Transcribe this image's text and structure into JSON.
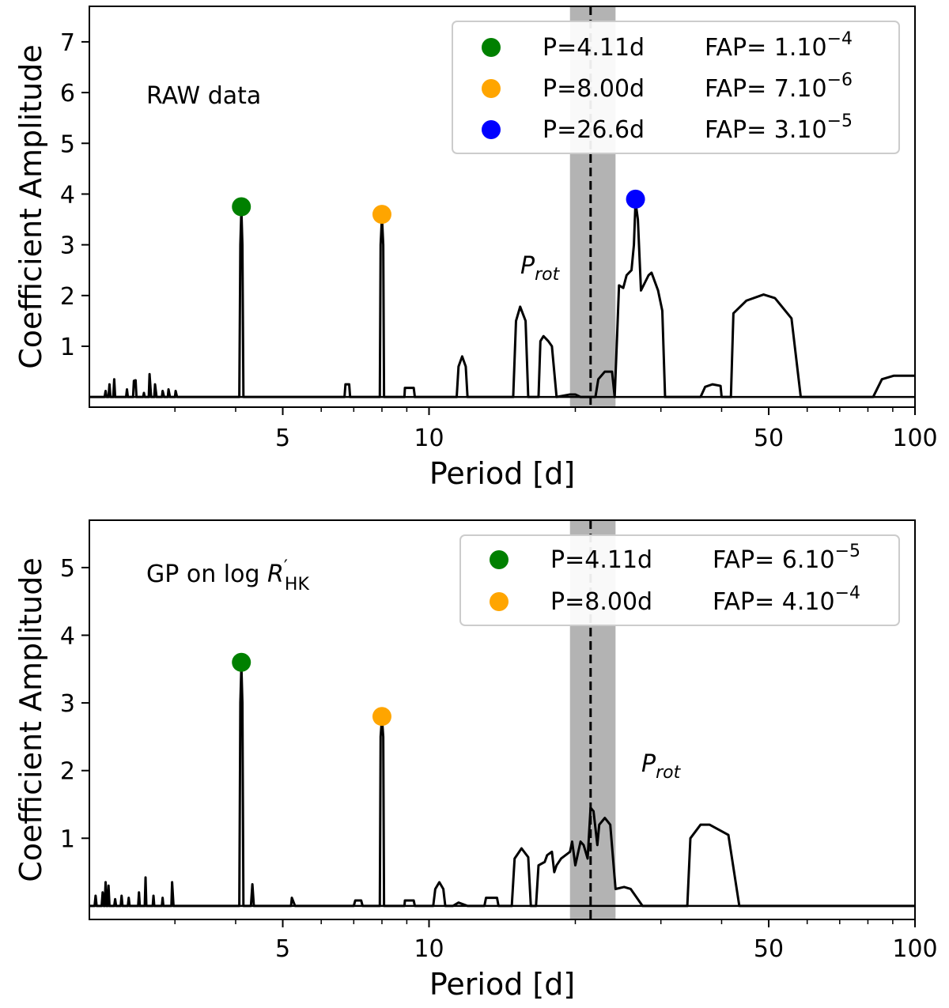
{
  "chart_data": [
    {
      "type": "line",
      "title": "",
      "annotation": "RAW data",
      "xlabel": "Period [d]",
      "ylabel": "Coefficient Amplitude",
      "xscale": "log",
      "xlim": [
        2,
        100
      ],
      "ylim": [
        -0.2,
        7.7
      ],
      "xticks": [
        {
          "value": 5,
          "label": "5"
        },
        {
          "value": 10,
          "label": "10"
        },
        {
          "value": 50,
          "label": "50"
        },
        {
          "value": 100,
          "label": "100"
        }
      ],
      "yticks": [
        {
          "value": 1,
          "label": "1"
        },
        {
          "value": 2,
          "label": "2"
        },
        {
          "value": 3,
          "label": "3"
        },
        {
          "value": 4,
          "label": "4"
        },
        {
          "value": 5,
          "label": "5"
        },
        {
          "value": 6,
          "label": "6"
        },
        {
          "value": 7,
          "label": "7"
        }
      ],
      "rotation_period": {
        "label": "P",
        "subscript": "rot",
        "value": 21.5,
        "band": [
          19.5,
          24.2
        ]
      },
      "series": [
        {
          "name": "periodogram",
          "color": "#000000",
          "points": [
            [
              2.0,
              0
            ],
            [
              2.15,
              0
            ],
            [
              2.16,
              0.12
            ],
            [
              2.17,
              0
            ],
            [
              2.19,
              0
            ],
            [
              2.2,
              0.25
            ],
            [
              2.21,
              0
            ],
            [
              2.24,
              0
            ],
            [
              2.25,
              0.35
            ],
            [
              2.26,
              0
            ],
            [
              2.38,
              0
            ],
            [
              2.39,
              0.15
            ],
            [
              2.4,
              0
            ],
            [
              2.46,
              0
            ],
            [
              2.47,
              0.32
            ],
            [
              2.49,
              0.33
            ],
            [
              2.5,
              0
            ],
            [
              2.58,
              0
            ],
            [
              2.59,
              0.08
            ],
            [
              2.6,
              0
            ],
            [
              2.65,
              0
            ],
            [
              2.66,
              0.45
            ],
            [
              2.68,
              0
            ],
            [
              2.72,
              0
            ],
            [
              2.73,
              0.25
            ],
            [
              2.75,
              0
            ],
            [
              2.82,
              0
            ],
            [
              2.83,
              0.12
            ],
            [
              2.85,
              0
            ],
            [
              2.9,
              0
            ],
            [
              2.91,
              0.15
            ],
            [
              2.93,
              0
            ],
            [
              3.0,
              0
            ],
            [
              3.01,
              0.12
            ],
            [
              3.03,
              0
            ],
            [
              4.07,
              0
            ],
            [
              4.09,
              3.0
            ],
            [
              4.11,
              3.7
            ],
            [
              4.13,
              3.0
            ],
            [
              4.15,
              0
            ],
            [
              6.7,
              0
            ],
            [
              6.73,
              0.25
            ],
            [
              6.85,
              0.25
            ],
            [
              6.88,
              0
            ],
            [
              7.92,
              0
            ],
            [
              7.95,
              3.0
            ],
            [
              8.0,
              3.55
            ],
            [
              8.05,
              3.0
            ],
            [
              8.08,
              0
            ],
            [
              8.9,
              0
            ],
            [
              8.92,
              0.18
            ],
            [
              9.3,
              0.18
            ],
            [
              9.35,
              0
            ],
            [
              11.4,
              0
            ],
            [
              11.5,
              0.6
            ],
            [
              11.7,
              0.8
            ],
            [
              11.9,
              0.6
            ],
            [
              12.0,
              0
            ],
            [
              14.9,
              0
            ],
            [
              15.1,
              1.5
            ],
            [
              15.4,
              1.78
            ],
            [
              15.8,
              1.5
            ],
            [
              16.0,
              0
            ],
            [
              16.8,
              0
            ],
            [
              16.95,
              1.1
            ],
            [
              17.2,
              1.2
            ],
            [
              17.6,
              1.1
            ],
            [
              17.9,
              1.0
            ],
            [
              18.3,
              0
            ],
            [
              19.5,
              0.05
            ],
            [
              20.0,
              0.05
            ],
            [
              20.5,
              0
            ],
            [
              22.0,
              0
            ],
            [
              22.3,
              0.35
            ],
            [
              23.0,
              0.5
            ],
            [
              23.8,
              0.5
            ],
            [
              24.1,
              0
            ],
            [
              24.4,
              1.3
            ],
            [
              24.6,
              2.2
            ],
            [
              25.1,
              2.15
            ],
            [
              25.5,
              2.4
            ],
            [
              26.1,
              2.5
            ],
            [
              26.4,
              3.0
            ],
            [
              26.6,
              3.85
            ],
            [
              26.9,
              3.5
            ],
            [
              27.3,
              2.1
            ],
            [
              28.3,
              2.4
            ],
            [
              28.7,
              2.45
            ],
            [
              29.6,
              2.1
            ],
            [
              30.2,
              1.7
            ],
            [
              30.6,
              0
            ],
            [
              36.2,
              0
            ],
            [
              37.0,
              0.2
            ],
            [
              38.3,
              0.25
            ],
            [
              39.8,
              0.22
            ],
            [
              40.0,
              0
            ],
            [
              41.8,
              0
            ],
            [
              42.3,
              1.65
            ],
            [
              45.0,
              1.9
            ],
            [
              48.8,
              2.02
            ],
            [
              51.5,
              1.95
            ],
            [
              55.7,
              1.55
            ],
            [
              58.2,
              0
            ],
            [
              82.0,
              0
            ],
            [
              85.5,
              0.35
            ],
            [
              90.5,
              0.42
            ],
            [
              100.0,
              0.42
            ]
          ]
        }
      ],
      "markers": [
        {
          "x": 4.11,
          "y": 3.75,
          "color": "#008000"
        },
        {
          "x": 8.0,
          "y": 3.6,
          "color": "#ffa500"
        },
        {
          "x": 26.6,
          "y": 3.9,
          "color": "#0000ff"
        }
      ],
      "legend": {
        "position": "top-right",
        "entries": [
          {
            "color": "#008000",
            "period": "P=4.11d",
            "fap_prefix": "FAP= 1.10",
            "fap_exp": "−4"
          },
          {
            "color": "#ffa500",
            "period": "P=8.00d",
            "fap_prefix": "FAP= 7.10",
            "fap_exp": "−6"
          },
          {
            "color": "#0000ff",
            "period": "P=26.6d",
            "fap_prefix": "FAP= 3.10",
            "fap_exp": "−5"
          }
        ]
      }
    },
    {
      "type": "line",
      "title": "",
      "annotation": "GP on log R'HK",
      "annotation_parts": {
        "prefix": "GP on log ",
        "symbol": "R",
        "prime": "′",
        "subscript": "HK"
      },
      "xlabel": "Period [d]",
      "ylabel": "Coefficient Amplitude",
      "xscale": "log",
      "xlim": [
        2,
        100
      ],
      "ylim": [
        -0.2,
        5.7
      ],
      "xticks": [
        {
          "value": 5,
          "label": "5"
        },
        {
          "value": 10,
          "label": "10"
        },
        {
          "value": 50,
          "label": "50"
        },
        {
          "value": 100,
          "label": "100"
        }
      ],
      "yticks": [
        {
          "value": 1,
          "label": "1"
        },
        {
          "value": 2,
          "label": "2"
        },
        {
          "value": 3,
          "label": "3"
        },
        {
          "value": 4,
          "label": "4"
        },
        {
          "value": 5,
          "label": "5"
        }
      ],
      "rotation_period": {
        "label": "P",
        "subscript": "rot",
        "value": 21.5,
        "band": [
          19.5,
          24.2
        ]
      },
      "series": [
        {
          "name": "periodogram",
          "color": "#000000",
          "points": [
            [
              2.0,
              0
            ],
            [
              2.05,
              0
            ],
            [
              2.06,
              0.15
            ],
            [
              2.07,
              0
            ],
            [
              2.12,
              0
            ],
            [
              2.13,
              0.2
            ],
            [
              2.14,
              0
            ],
            [
              2.15,
              0
            ],
            [
              2.16,
              0.35
            ],
            [
              2.17,
              0
            ],
            [
              2.18,
              0
            ],
            [
              2.19,
              0.3
            ],
            [
              2.2,
              0
            ],
            [
              2.25,
              0
            ],
            [
              2.26,
              0.1
            ],
            [
              2.27,
              0
            ],
            [
              2.32,
              0
            ],
            [
              2.33,
              0.15
            ],
            [
              2.34,
              0
            ],
            [
              2.4,
              0
            ],
            [
              2.41,
              0.12
            ],
            [
              2.42,
              0
            ],
            [
              2.52,
              0
            ],
            [
              2.53,
              0.2
            ],
            [
              2.54,
              0
            ],
            [
              2.6,
              0
            ],
            [
              2.61,
              0.42
            ],
            [
              2.62,
              0
            ],
            [
              2.7,
              0
            ],
            [
              2.71,
              0.15
            ],
            [
              2.72,
              0
            ],
            [
              2.82,
              0
            ],
            [
              2.83,
              0.12
            ],
            [
              2.84,
              0
            ],
            [
              2.95,
              0
            ],
            [
              2.96,
              0.35
            ],
            [
              2.98,
              0
            ],
            [
              4.07,
              0
            ],
            [
              4.09,
              3.0
            ],
            [
              4.11,
              3.55
            ],
            [
              4.13,
              3.0
            ],
            [
              4.15,
              0
            ],
            [
              4.3,
              0
            ],
            [
              4.33,
              0.32
            ],
            [
              4.36,
              0
            ],
            [
              5.2,
              0
            ],
            [
              5.22,
              0.12
            ],
            [
              5.3,
              0
            ],
            [
              7.0,
              0
            ],
            [
              7.05,
              0.08
            ],
            [
              7.25,
              0.08
            ],
            [
              7.3,
              0
            ],
            [
              7.92,
              0
            ],
            [
              7.95,
              2.5
            ],
            [
              8.0,
              2.78
            ],
            [
              8.05,
              2.5
            ],
            [
              8.08,
              0
            ],
            [
              8.9,
              0
            ],
            [
              8.92,
              0.08
            ],
            [
              9.3,
              0.08
            ],
            [
              9.35,
              0
            ],
            [
              10.2,
              0
            ],
            [
              10.3,
              0.25
            ],
            [
              10.5,
              0.35
            ],
            [
              10.7,
              0.25
            ],
            [
              10.8,
              0
            ],
            [
              11.2,
              0
            ],
            [
              11.5,
              0.05
            ],
            [
              12.0,
              0
            ],
            [
              13.0,
              0
            ],
            [
              13.1,
              0.12
            ],
            [
              13.8,
              0.12
            ],
            [
              13.9,
              0
            ],
            [
              14.8,
              0
            ],
            [
              15.0,
              0.7
            ],
            [
              15.5,
              0.85
            ],
            [
              16.0,
              0.72
            ],
            [
              16.2,
              0
            ],
            [
              16.6,
              0
            ],
            [
              16.8,
              0.6
            ],
            [
              17.3,
              0.65
            ],
            [
              17.5,
              0.75
            ],
            [
              17.9,
              0.8
            ],
            [
              18.1,
              0.5
            ],
            [
              18.3,
              0.6
            ],
            [
              18.7,
              0.7
            ],
            [
              19.5,
              0.8
            ],
            [
              19.7,
              0.95
            ],
            [
              20.0,
              0.6
            ],
            [
              20.5,
              0.95
            ],
            [
              20.8,
              0.9
            ],
            [
              21.2,
              0.7
            ],
            [
              21.5,
              1.45
            ],
            [
              21.8,
              1.4
            ],
            [
              22.2,
              0.9
            ],
            [
              22.4,
              1.2
            ],
            [
              23.0,
              1.3
            ],
            [
              23.6,
              1.2
            ],
            [
              24.2,
              0.25
            ],
            [
              25.2,
              0.28
            ],
            [
              26.0,
              0.25
            ],
            [
              27.5,
              0
            ],
            [
              34.0,
              0
            ],
            [
              34.5,
              1.0
            ],
            [
              36.2,
              1.2
            ],
            [
              37.8,
              1.2
            ],
            [
              41.3,
              1.05
            ],
            [
              43.5,
              0
            ],
            [
              100.0,
              0
            ]
          ]
        }
      ],
      "markers": [
        {
          "x": 4.11,
          "y": 3.6,
          "color": "#008000"
        },
        {
          "x": 8.0,
          "y": 2.8,
          "color": "#ffa500"
        }
      ],
      "legend": {
        "position": "top-right",
        "entries": [
          {
            "color": "#008000",
            "period": "P=4.11d",
            "fap_prefix": "FAP= 6.10",
            "fap_exp": "−5"
          },
          {
            "color": "#ffa500",
            "period": "P=8.00d",
            "fap_prefix": "FAP= 4.10",
            "fap_exp": "−4"
          }
        ]
      }
    }
  ]
}
